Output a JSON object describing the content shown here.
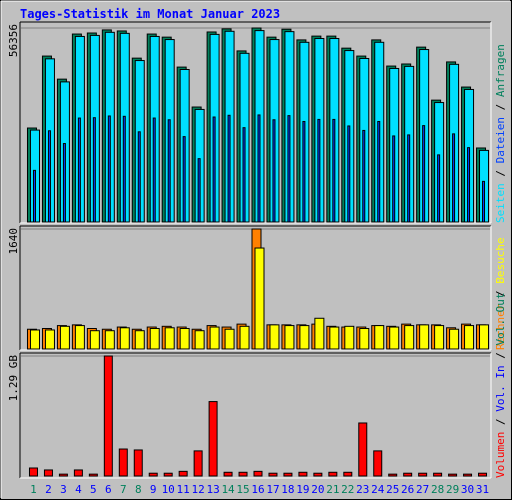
{
  "title": "Tages-Statistik im Monat Januar 2023",
  "categories": [
    "1",
    "2",
    "3",
    "4",
    "5",
    "6",
    "7",
    "8",
    "9",
    "10",
    "11",
    "12",
    "13",
    "14",
    "15",
    "16",
    "17",
    "18",
    "19",
    "20",
    "21",
    "22",
    "23",
    "24",
    "25",
    "26",
    "27",
    "28",
    "29",
    "30",
    "31"
  ],
  "category_colors": [
    "#00805c",
    "#0000ff",
    "#0000ff",
    "#0000ff",
    "#0000ff",
    "#0000ff",
    "#00805c",
    "#00805c",
    "#0000ff",
    "#0000ff",
    "#0000ff",
    "#0000ff",
    "#0000ff",
    "#00805c",
    "#00805c",
    "#0000ff",
    "#0000ff",
    "#0000ff",
    "#0000ff",
    "#0000ff",
    "#00805c",
    "#00805c",
    "#0000ff",
    "#0000ff",
    "#0000ff",
    "#0000ff",
    "#0000ff",
    "#00805c",
    "#00805c",
    "#0000ff",
    "#0000ff"
  ],
  "legend_separator": " / ",
  "chart_data": [
    {
      "type": "bar",
      "ylim": [
        0,
        56356
      ],
      "yticks": [
        56356
      ],
      "series": [
        {
          "name": "Seiten",
          "color": "#00e0ff",
          "values": [
            26700,
            47400,
            40700,
            53900,
            54200,
            55100,
            54800,
            46900,
            53900,
            53000,
            44300,
            32700,
            54500,
            55400,
            49000,
            55600,
            53000,
            55300,
            52200,
            53300,
            53300,
            49800,
            47500,
            52200,
            44600,
            45200,
            50100,
            34700,
            45800,
            38500,
            20800
          ]
        },
        {
          "name": "Dateien",
          "color": "#0040ff",
          "values": [
            15000,
            26500,
            22800,
            30200,
            30300,
            30800,
            30700,
            26200,
            30200,
            29700,
            24800,
            18400,
            30500,
            31000,
            27400,
            31100,
            29700,
            30900,
            29200,
            29800,
            29800,
            27900,
            26600,
            29200,
            25000,
            25300,
            28000,
            19500,
            25600,
            21600,
            11800
          ]
        },
        {
          "name": "Anfragen",
          "color": "#00805c",
          "values": [
            27300,
            48200,
            41500,
            54600,
            54900,
            55800,
            55500,
            47600,
            54600,
            53700,
            45000,
            33400,
            55200,
            56100,
            49700,
            56356,
            53700,
            56000,
            52900,
            54000,
            54000,
            50500,
            48200,
            52900,
            45300,
            45900,
            50800,
            35400,
            46500,
            39200,
            21500
          ]
        }
      ]
    },
    {
      "type": "bar",
      "ylim": [
        0,
        1640
      ],
      "yticks": [
        1640
      ],
      "series": [
        {
          "name": "Rechner",
          "color": "#ff8000",
          "values": [
            270,
            280,
            320,
            330,
            280,
            270,
            300,
            270,
            300,
            310,
            300,
            270,
            320,
            300,
            340,
            1640,
            330,
            330,
            330,
            340,
            310,
            300,
            300,
            320,
            310,
            340,
            330,
            330,
            290,
            340,
            330
          ]
        },
        {
          "name": "Besuche",
          "color": "#ffff00",
          "values": [
            260,
            260,
            310,
            320,
            250,
            250,
            290,
            250,
            280,
            290,
            280,
            250,
            300,
            270,
            310,
            1380,
            330,
            320,
            320,
            420,
            300,
            310,
            280,
            320,
            300,
            320,
            330,
            320,
            270,
            320,
            330
          ]
        }
      ]
    },
    {
      "type": "bar",
      "ylim": [
        0,
        1.29
      ],
      "yticks": [
        {
          "value": 1.29,
          "label": "1.29 GB"
        }
      ],
      "series": [
        {
          "name": "Volumen",
          "color": "#ff0000",
          "values": [
            0.086,
            0.065,
            0.02,
            0.065,
            0.02,
            1.29,
            0.29,
            0.28,
            0.03,
            0.03,
            0.05,
            0.27,
            0.8,
            0.04,
            0.04,
            0.05,
            0.03,
            0.03,
            0.04,
            0.03,
            0.04,
            0.04,
            0.57,
            0.27,
            0.02,
            0.03,
            0.03,
            0.03,
            0.02,
            0.02,
            0.03
          ]
        }
      ],
      "extra_legend": [
        {
          "name": "Vol. In",
          "color": "#0000ff"
        },
        {
          "name": "Vol. Out",
          "color": "#00805c"
        }
      ]
    }
  ]
}
